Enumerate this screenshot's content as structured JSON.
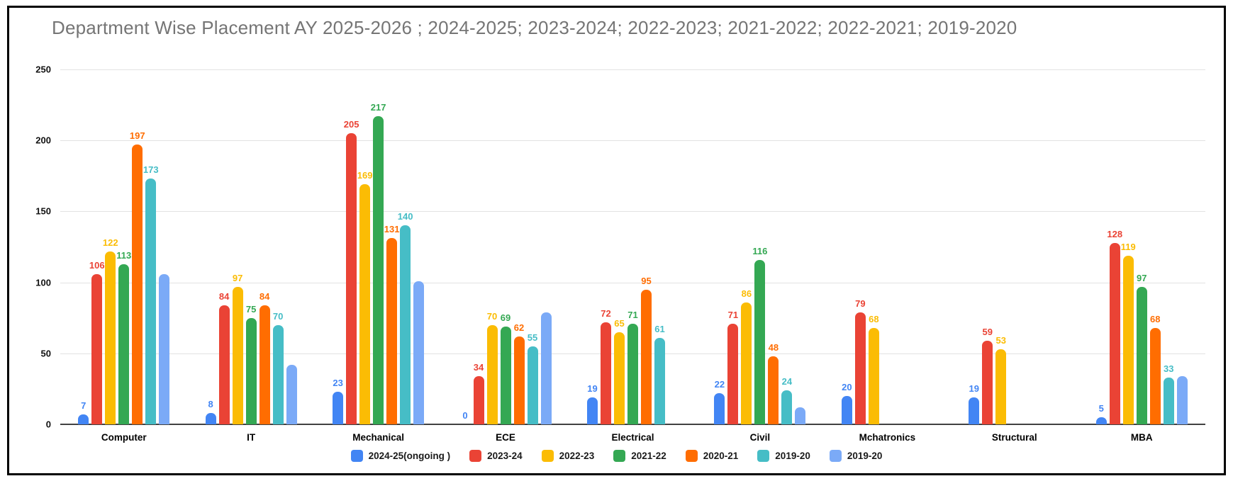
{
  "chart_data": {
    "type": "bar",
    "title": "Department Wise Placement AY 2025-2026 ; 2024-2025; 2023-2024; 2022-2023; 2021-2022; 2022-2021; 2019-2020",
    "categories": [
      "Computer",
      "IT",
      "Mechanical",
      "ECE",
      "Electrical",
      "Civil",
      "Mchatronics",
      "Structural",
      "MBA"
    ],
    "series": [
      {
        "name": "2024-25(ongoing )",
        "color": "#4285f4",
        "show_labels": true,
        "values": [
          7,
          8,
          23,
          0,
          19,
          22,
          20,
          19,
          5
        ]
      },
      {
        "name": "2023-24",
        "color": "#ea4335",
        "show_labels": true,
        "values": [
          106,
          84,
          205,
          34,
          72,
          71,
          79,
          59,
          128
        ]
      },
      {
        "name": "2022-23",
        "color": "#fbbc04",
        "show_labels": true,
        "values": [
          122,
          97,
          169,
          70,
          65,
          86,
          68,
          53,
          119
        ]
      },
      {
        "name": "2021-22",
        "color": "#34a853",
        "show_labels": true,
        "values": [
          113,
          75,
          217,
          69,
          71,
          116,
          null,
          null,
          97
        ]
      },
      {
        "name": "2020-21",
        "color": "#ff6d01",
        "show_labels": true,
        "values": [
          197,
          84,
          131,
          62,
          95,
          48,
          null,
          null,
          68
        ]
      },
      {
        "name": "2019-20",
        "color": "#46bdc6",
        "show_labels": true,
        "values": [
          173,
          70,
          140,
          55,
          61,
          24,
          null,
          null,
          33
        ]
      },
      {
        "name": "2019-20",
        "color": "#7baaf7",
        "show_labels": false,
        "values": [
          106,
          42,
          101,
          79,
          null,
          12,
          null,
          null,
          34
        ]
      }
    ],
    "ylabel": "",
    "xlabel": "",
    "ylim": [
      0,
      250
    ],
    "yticks": [
      0,
      50,
      100,
      150,
      200,
      250
    ],
    "grid": true,
    "legend_position": "bottom",
    "colors": {
      "title_text": "#757575",
      "gridline": "#e2e2e2",
      "axis_baseline": "#424242",
      "label_text": "#000000",
      "frame_border": "#000000",
      "background": "#ffffff"
    }
  }
}
